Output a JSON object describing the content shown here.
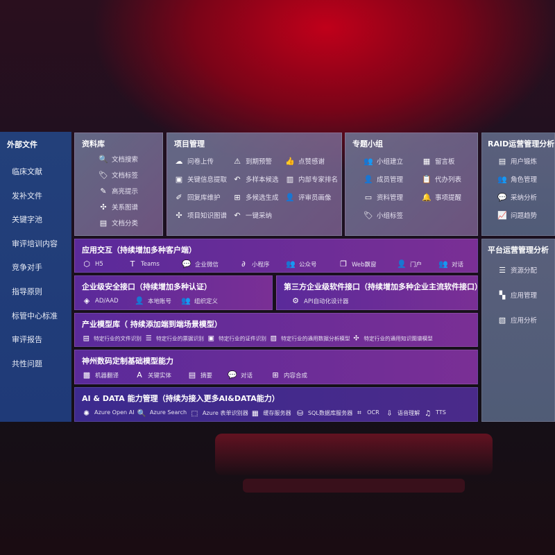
{
  "sidebar": {
    "title": "外部文件",
    "items": [
      "临床文献",
      "发补文件",
      "关键字池",
      "审评培训内容",
      "竞争对手",
      "指导原则",
      "标管中心标准",
      "审评报告",
      "共性问题"
    ]
  },
  "library": {
    "title": "资料库",
    "items": [
      {
        "icon": "document-search-icon",
        "g": "🔍",
        "label": "文档搜索"
      },
      {
        "icon": "tag-icon",
        "g": "🏷",
        "label": "文档标签"
      },
      {
        "icon": "pen-icon",
        "g": "✎",
        "label": "高亮提示"
      },
      {
        "icon": "graph-icon",
        "g": "✣",
        "label": "关系图谱"
      },
      {
        "icon": "document-copy-icon",
        "g": "▤",
        "label": "文档分类"
      }
    ]
  },
  "project": {
    "title": "项目管理",
    "items": [
      {
        "icon": "cloud-upload-icon",
        "g": "☁",
        "label": "问卷上传"
      },
      {
        "icon": "alarm-icon",
        "g": "⚠",
        "label": "到期预警"
      },
      {
        "icon": "thumbs-up-icon",
        "g": "👍",
        "label": "点赞感谢"
      },
      {
        "icon": "window-icon",
        "g": "▣",
        "label": "关键信息提取"
      },
      {
        "icon": "reply-icon",
        "g": "↶",
        "label": "多样本候选"
      },
      {
        "icon": "ranking-icon",
        "g": "▥",
        "label": "内部专家排名"
      },
      {
        "icon": "edit-icon",
        "g": "✐",
        "label": "回复库维护"
      },
      {
        "icon": "puzzle-icon",
        "g": "⊞",
        "label": "多候选生成"
      },
      {
        "icon": "user-icon",
        "g": "👤",
        "label": "评审员画像"
      },
      {
        "icon": "knowledge-graph-icon",
        "g": "✣",
        "label": "项目知识图谱"
      },
      {
        "icon": "reply-icon",
        "g": "↶",
        "label": "一键采纳"
      }
    ]
  },
  "group": {
    "title": "专题小组",
    "items": [
      {
        "icon": "users-icon",
        "g": "👥",
        "label": "小组建立"
      },
      {
        "icon": "bbs-icon",
        "g": "▦",
        "label": "留言板"
      },
      {
        "icon": "user-add-icon",
        "g": "👤",
        "label": "成员管理"
      },
      {
        "icon": "clipboard-icon",
        "g": "📋",
        "label": "代办列表"
      },
      {
        "icon": "folder-icon",
        "g": "▭",
        "label": "资料管理"
      },
      {
        "icon": "bell-icon",
        "g": "🔔",
        "label": "事项提醒"
      },
      {
        "icon": "tag-icon",
        "g": "🏷",
        "label": "小组标签"
      }
    ]
  },
  "raid": {
    "title": "RAID运营管理分析",
    "items": [
      {
        "icon": "id-card-icon",
        "g": "▤",
        "label": "用户锻炼"
      },
      {
        "icon": "users-icon",
        "g": "👥",
        "label": "角色管理"
      },
      {
        "icon": "qa-icon",
        "g": "💬",
        "label": "采纳分析"
      },
      {
        "icon": "trend-chart-icon",
        "g": "📈",
        "label": "问题趋势"
      }
    ]
  },
  "platform": {
    "title": "平台运营管理分析",
    "items": [
      {
        "icon": "checklist-icon",
        "g": "☰",
        "label": "资源分配"
      },
      {
        "icon": "apps-icon",
        "g": "▚",
        "label": "应用管理"
      },
      {
        "icon": "analysis-icon",
        "g": "▧",
        "label": "应用分析"
      }
    ]
  },
  "interaction": {
    "title": "应用交互（持续增加多种客户端）",
    "items": [
      {
        "icon": "html5-icon",
        "g": "⬡",
        "label": "H5"
      },
      {
        "icon": "teams-icon",
        "g": "T",
        "label": "Teams"
      },
      {
        "icon": "wechat-work-icon",
        "g": "💬",
        "label": "企业微信"
      },
      {
        "icon": "mini-program-icon",
        "g": "∂",
        "label": "小程序"
      },
      {
        "icon": "users-icon",
        "g": "👥",
        "label": "公众号"
      },
      {
        "icon": "window-icon",
        "g": "❐",
        "label": "Web飘窗"
      },
      {
        "icon": "portal-user-icon",
        "g": "👤",
        "label": "门户"
      },
      {
        "icon": "chat-users-icon",
        "g": "👥",
        "label": "对话"
      }
    ]
  },
  "security": {
    "title": "企业级安全接口（持续增加多种认证）",
    "items": [
      {
        "icon": "ad-icon",
        "g": "◈",
        "label": "AD/AAD"
      },
      {
        "icon": "user-icon",
        "g": "👤",
        "label": "本地账号"
      },
      {
        "icon": "org-icon",
        "g": "👥",
        "label": "组织定义"
      }
    ]
  },
  "thirdparty": {
    "title": "第三方企业级软件接口（持续增加多种企业主流软件接口）",
    "items": [
      {
        "icon": "api-gear-icon",
        "g": "⚙",
        "label": "API自动化设计器"
      }
    ]
  },
  "industry": {
    "title": "产业模型库（ 持续添加端到端场景模型）",
    "items": [
      {
        "icon": "document-icon",
        "g": "▤",
        "label": "特定行业的文件识别"
      },
      {
        "icon": "receipt-icon",
        "g": "☰",
        "label": "特定行业的票据识别"
      },
      {
        "icon": "id-card-icon",
        "g": "▣",
        "label": "特定行业的证件识别"
      },
      {
        "icon": "image-chart-icon",
        "g": "▨",
        "label": "特定行业的通用数据分析模型"
      },
      {
        "icon": "graph-icon",
        "g": "✣",
        "label": "特定行业的通用知识图谱模型"
      }
    ]
  },
  "base": {
    "title": "神州数码定制基础模型能力",
    "items": [
      {
        "icon": "translate-icon",
        "g": "▩",
        "label": "机器翻译"
      },
      {
        "icon": "entity-icon",
        "g": "A",
        "label": "关键实体"
      },
      {
        "icon": "summary-icon",
        "g": "▤",
        "label": "摘要"
      },
      {
        "icon": "chat-icon",
        "g": "💬",
        "label": "对话"
      },
      {
        "icon": "compose-icon",
        "g": "⊞",
        "label": "内容合成"
      }
    ]
  },
  "aidata": {
    "title": "AI & DATA 能力管理（持续为接入更多AI&DATA能力）",
    "items": [
      {
        "icon": "openai-icon",
        "g": "✺",
        "label": "Azure Open AI"
      },
      {
        "icon": "search-doc-icon",
        "g": "🔍",
        "label": "Azure Search"
      },
      {
        "icon": "form-recognizer-icon",
        "g": "⬚",
        "label": "Azure 表单识别器"
      },
      {
        "icon": "cache-server-icon",
        "g": "▦",
        "label": "缓存服务器"
      },
      {
        "icon": "database-icon",
        "g": "⛁",
        "label": "SQL数据库服务器"
      },
      {
        "icon": "ocr-icon",
        "g": "⌗",
        "label": "OCR"
      },
      {
        "icon": "voice-icon",
        "g": "⇩",
        "label": "语音理解"
      },
      {
        "icon": "tts-icon",
        "g": "♫",
        "label": "TTS"
      }
    ]
  }
}
